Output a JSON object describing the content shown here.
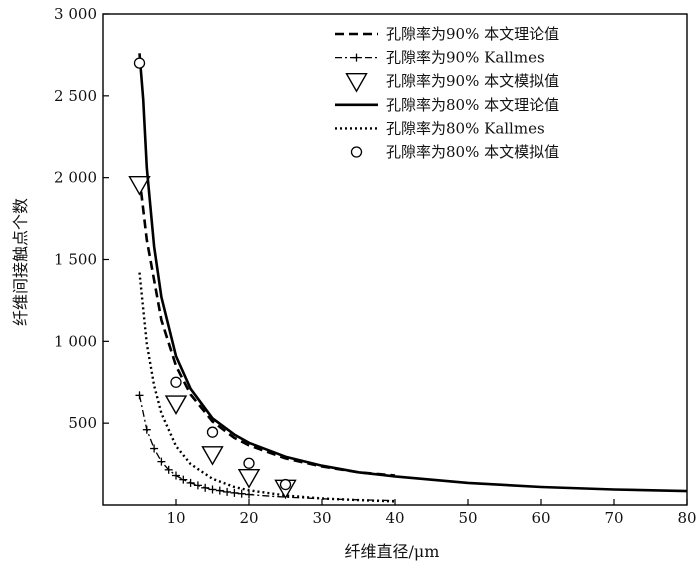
{
  "chart_data": {
    "type": "line",
    "title": "",
    "xlabel": "纤维直径/μm",
    "ylabel": "纤维间接触点个数",
    "xlim": [
      0,
      80
    ],
    "ylim": [
      0,
      3000
    ],
    "x_ticks": [
      10,
      20,
      30,
      40,
      50,
      60,
      70,
      80
    ],
    "x_tick_labels": [
      "10",
      "20",
      "30",
      "40",
      "50",
      "60",
      "70",
      "80"
    ],
    "y_ticks": [
      500,
      1000,
      1500,
      2000,
      2500,
      3000
    ],
    "y_tick_labels": [
      "500",
      "1 000",
      "1 500",
      "2 000",
      "2 500",
      "3 000"
    ],
    "grid": false,
    "legend_position": "top-right",
    "series": [
      {
        "name": "孔隙率为90% 本文理论值",
        "style": "dashed",
        "x": [
          5,
          6,
          8,
          10,
          12,
          15,
          18,
          20,
          25,
          30,
          35,
          40
        ],
        "y": [
          2000,
          1620,
          1130,
          850,
          675,
          510,
          410,
          365,
          285,
          235,
          200,
          180
        ]
      },
      {
        "name": "孔隙率为90% Kallmes",
        "style": "dashdot-plus",
        "x": [
          5,
          6,
          7,
          8,
          9,
          10,
          11,
          12,
          13,
          14,
          15,
          16,
          17,
          18,
          19,
          20,
          22,
          24,
          26,
          28,
          30,
          35,
          40
        ],
        "y": [
          670,
          460,
          345,
          265,
          215,
          180,
          155,
          135,
          120,
          105,
          95,
          88,
          80,
          74,
          69,
          64,
          57,
          51,
          46,
          42,
          38,
          32,
          27
        ]
      },
      {
        "name": "孔隙率为90% 本文模拟值",
        "style": "triangle-markers",
        "x": [
          5,
          10,
          15,
          20,
          25
        ],
        "y": [
          1960,
          620,
          310,
          170,
          105
        ]
      },
      {
        "name": "孔隙率为80% 本文理论值",
        "style": "solid",
        "x": [
          5,
          5.5,
          6,
          7,
          8,
          10,
          12,
          15,
          18,
          20,
          25,
          30,
          35,
          40,
          50,
          60,
          70,
          80
        ],
        "y": [
          2760,
          2480,
          2060,
          1580,
          1270,
          910,
          710,
          530,
          430,
          380,
          295,
          240,
          200,
          175,
          135,
          110,
          95,
          85
        ]
      },
      {
        "name": "孔隙率为80% Kallmes",
        "style": "dotted",
        "x": [
          5,
          6,
          7,
          8,
          10,
          12,
          15,
          18,
          20,
          25,
          30,
          35,
          40
        ],
        "y": [
          1420,
          985,
          730,
          560,
          360,
          250,
          160,
          110,
          90,
          58,
          40,
          30,
          22
        ]
      },
      {
        "name": "孔隙率为80% 本文模拟值",
        "style": "circle-markers",
        "x": [
          5,
          10,
          15,
          20,
          25
        ],
        "y": [
          2700,
          750,
          445,
          255,
          125
        ]
      }
    ]
  }
}
